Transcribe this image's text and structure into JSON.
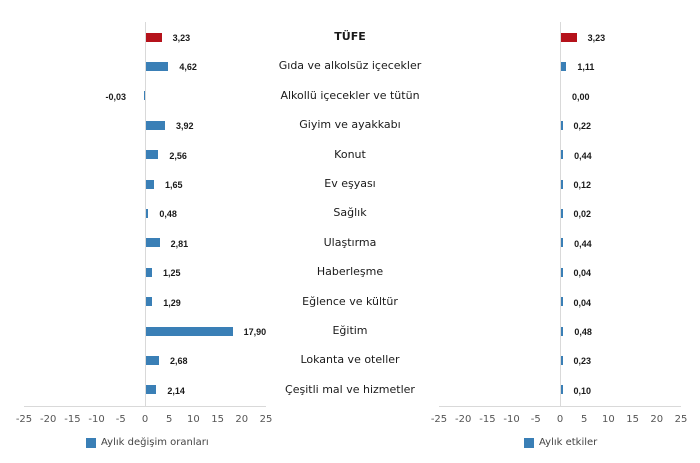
{
  "colors": {
    "highlight": "#b5121b",
    "bar": "#3a7fb6",
    "axis": "#d9d9d9"
  },
  "chart_data": [
    {
      "type": "bar",
      "orientation": "horizontal",
      "title": "",
      "legend": "Aylık değişim oranları",
      "legend_position": "bottom",
      "xlim": [
        -25,
        25
      ],
      "xticks": [
        -25,
        -20,
        -15,
        -10,
        -5,
        0,
        5,
        10,
        15,
        20,
        25
      ],
      "categories": [
        "TÜFE",
        "Gıda ve alkolsüz içecekler",
        "Alkollü içecekler ve tütün",
        "Giyim ve ayakkabı",
        "Konut",
        "Ev eşyası",
        "Sağlık",
        "Ulaştırma",
        "Haberleşme",
        "Eğlence ve kültür",
        "Eğitim",
        "Lokanta ve oteller",
        "Çeşitli mal ve hizmetler"
      ],
      "values": [
        3.23,
        4.62,
        -0.03,
        3.92,
        2.56,
        1.65,
        0.48,
        2.81,
        1.25,
        1.29,
        17.9,
        2.68,
        2.14
      ],
      "labels": [
        "3,23",
        "4,62",
        "-0,03",
        "3,92",
        "2,56",
        "1,65",
        "0,48",
        "2,81",
        "1,25",
        "1,29",
        "17,90",
        "2,68",
        "2,14"
      ]
    },
    {
      "type": "bar",
      "orientation": "horizontal",
      "title": "",
      "legend": "Aylık etkiler",
      "legend_position": "bottom",
      "xlim": [
        -25,
        25
      ],
      "xticks": [
        -25,
        -20,
        -15,
        -10,
        -5,
        0,
        5,
        10,
        15,
        20,
        25
      ],
      "categories": [
        "TÜFE",
        "Gıda ve alkolsüz içecekler",
        "Alkollü içecekler ve tütün",
        "Giyim ve ayakkabı",
        "Konut",
        "Ev eşyası",
        "Sağlık",
        "Ulaştırma",
        "Haberleşme",
        "Eğlence ve kültür",
        "Eğitim",
        "Lokanta ve oteller",
        "Çeşitli mal ve hizmetler"
      ],
      "values": [
        3.23,
        1.11,
        0.0,
        0.22,
        0.44,
        0.12,
        0.02,
        0.44,
        0.04,
        0.04,
        0.48,
        0.23,
        0.1
      ],
      "labels": [
        "3,23",
        "1,11",
        "0,00",
        "0,22",
        "0,44",
        "0,12",
        "0,02",
        "0,44",
        "0,04",
        "0,04",
        "0,48",
        "0,23",
        "0,10"
      ]
    }
  ]
}
